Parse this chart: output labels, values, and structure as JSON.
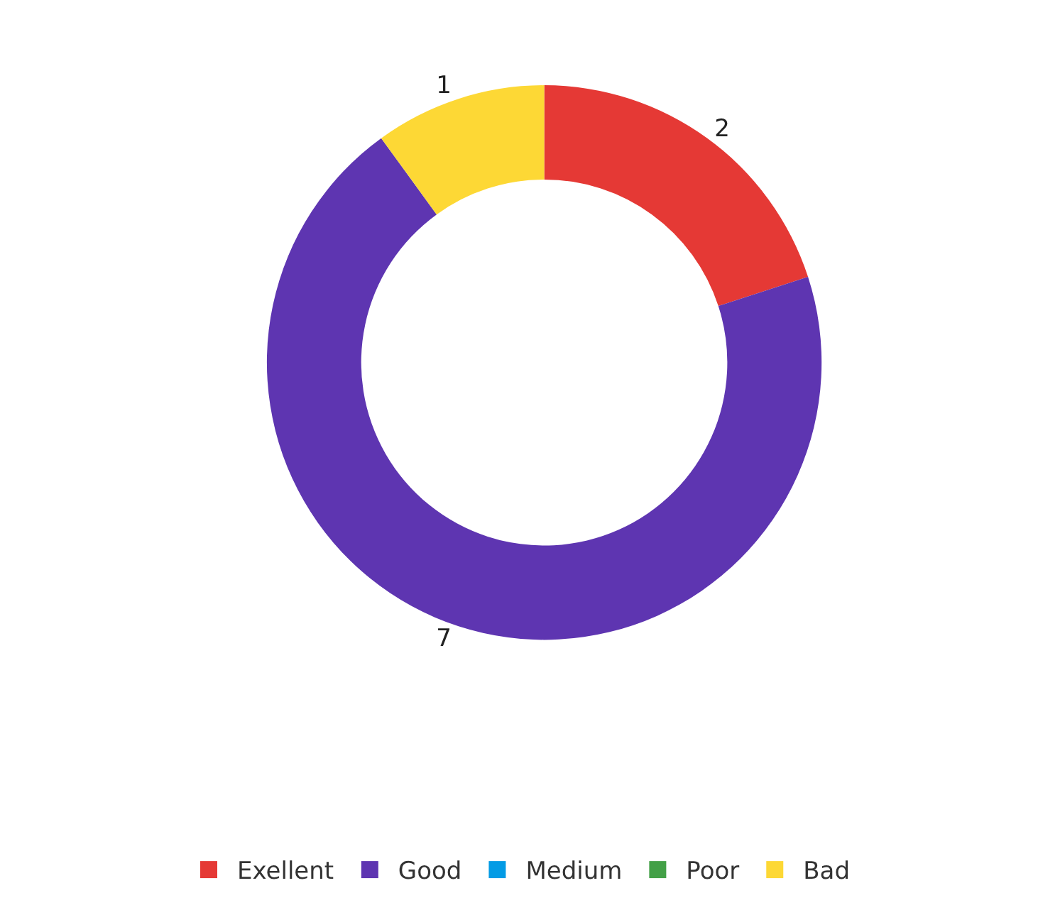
{
  "chart_data": {
    "type": "donut",
    "categories": [
      "Exellent",
      "Good",
      "Medium",
      "Poor",
      "Bad"
    ],
    "values": [
      2,
      7,
      0,
      0,
      1
    ],
    "value_labels": [
      "2",
      "7",
      null,
      null,
      "1"
    ],
    "colors": [
      "#e53935",
      "#5e35b1",
      "#039be5",
      "#43a047",
      "#fdd835"
    ],
    "legend": "bottom"
  }
}
